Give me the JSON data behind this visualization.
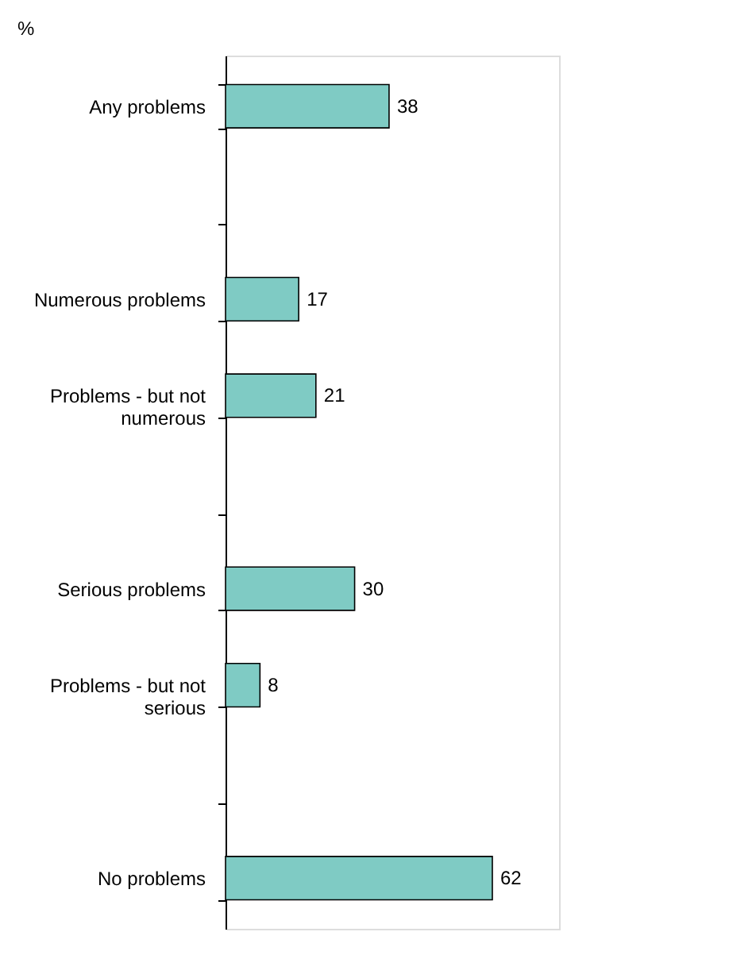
{
  "chart_data": {
    "type": "bar",
    "orientation": "horizontal",
    "title": "%",
    "categories": [
      "Any problems",
      null,
      "Numerous problems",
      "Problems - but not numerous",
      null,
      "Serious problems",
      "Problems - but not serious",
      null,
      "No problems"
    ],
    "values": [
      38,
      null,
      17,
      21,
      null,
      30,
      8,
      null,
      62
    ],
    "color": "#7fcbc4",
    "data_labels": true
  }
}
